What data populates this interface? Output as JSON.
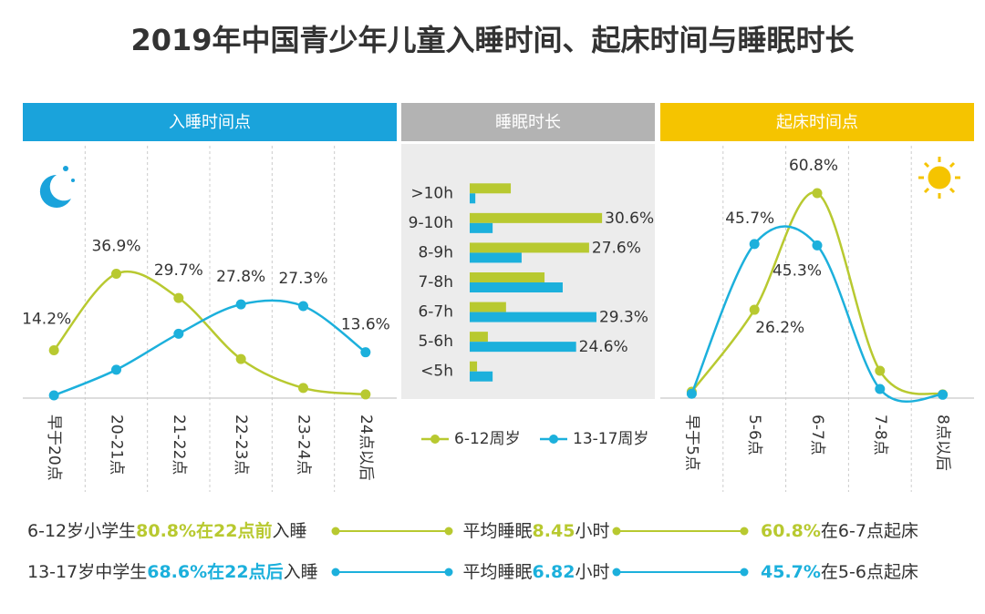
{
  "title": "2019年中国青少年儿童入睡时间、起床时间与睡眠时长",
  "chart_data": [
    {
      "type": "line",
      "title": "入睡时间点",
      "categories": [
        "早于20点",
        "20-21点",
        "21-22点",
        "22-23点",
        "23-24点",
        "24点以后"
      ],
      "ylim": [
        0,
        40
      ],
      "series": [
        {
          "color": "#b8c930",
          "values": [
            14.2,
            36.9,
            29.7,
            11.6,
            3.0,
            1.1
          ],
          "value_labels": [
            "14.2%",
            "36.9%",
            "29.7%",
            null,
            null,
            null
          ]
        },
        {
          "color": "#1cb0dc",
          "values": [
            0.8,
            8.4,
            19.1,
            27.8,
            27.3,
            13.6
          ],
          "value_labels": [
            null,
            null,
            null,
            "27.8%",
            "27.3%",
            "13.6%"
          ]
        }
      ]
    },
    {
      "type": "hbar",
      "title": "睡眠时长",
      "categories": [
        ">10h",
        "9-10h",
        "8-9h",
        "7-8h",
        "6-7h",
        "5-6h",
        "<5h"
      ],
      "xlim": [
        0,
        35
      ],
      "series": [
        {
          "name": "6-12周岁",
          "color": "#b8c930",
          "values": [
            9.5,
            30.6,
            27.6,
            17.3,
            8.4,
            4.2,
            1.7
          ],
          "value_labels": [
            null,
            "30.6%",
            "27.6%",
            null,
            null,
            null,
            null
          ]
        },
        {
          "name": "13-17周岁",
          "color": "#1cb0dc",
          "values": [
            1.3,
            5.3,
            12.0,
            21.5,
            29.3,
            24.6,
            5.3
          ],
          "value_labels": [
            null,
            null,
            null,
            null,
            "29.3%",
            "24.6%",
            null
          ]
        }
      ]
    },
    {
      "type": "line",
      "title": "起床时间点",
      "categories": [
        "早于5点",
        "5-6点",
        "6-7点",
        "7-8点",
        "8点以后"
      ],
      "ylim": [
        0,
        70
      ],
      "series": [
        {
          "color": "#b8c930",
          "values": [
            1.9,
            26.2,
            60.8,
            8.1,
            1.1
          ],
          "value_labels": [
            null,
            "26.2%",
            "60.8%",
            null,
            null
          ]
        },
        {
          "color": "#1cb0dc",
          "values": [
            1.3,
            45.7,
            45.3,
            2.7,
            1.0
          ],
          "value_labels": [
            null,
            "45.7%",
            "45.3%",
            null,
            null
          ]
        }
      ]
    }
  ],
  "summary": [
    {
      "color": "#b8c930",
      "bedtime": [
        "6-12岁小学生",
        "80.8%在22点前",
        "入睡"
      ],
      "sleep": [
        "平均睡眠",
        "8.45",
        "小时"
      ],
      "wake": [
        "60.8%",
        "在6-7点起床"
      ]
    },
    {
      "color": "#1cb0dc",
      "bedtime": [
        "13-17岁中学生",
        "68.6%在22点后",
        "入睡"
      ],
      "sleep": [
        "平均睡眠",
        "6.82",
        "小时"
      ],
      "wake": [
        "45.7%",
        "在5-6点起床"
      ]
    }
  ]
}
